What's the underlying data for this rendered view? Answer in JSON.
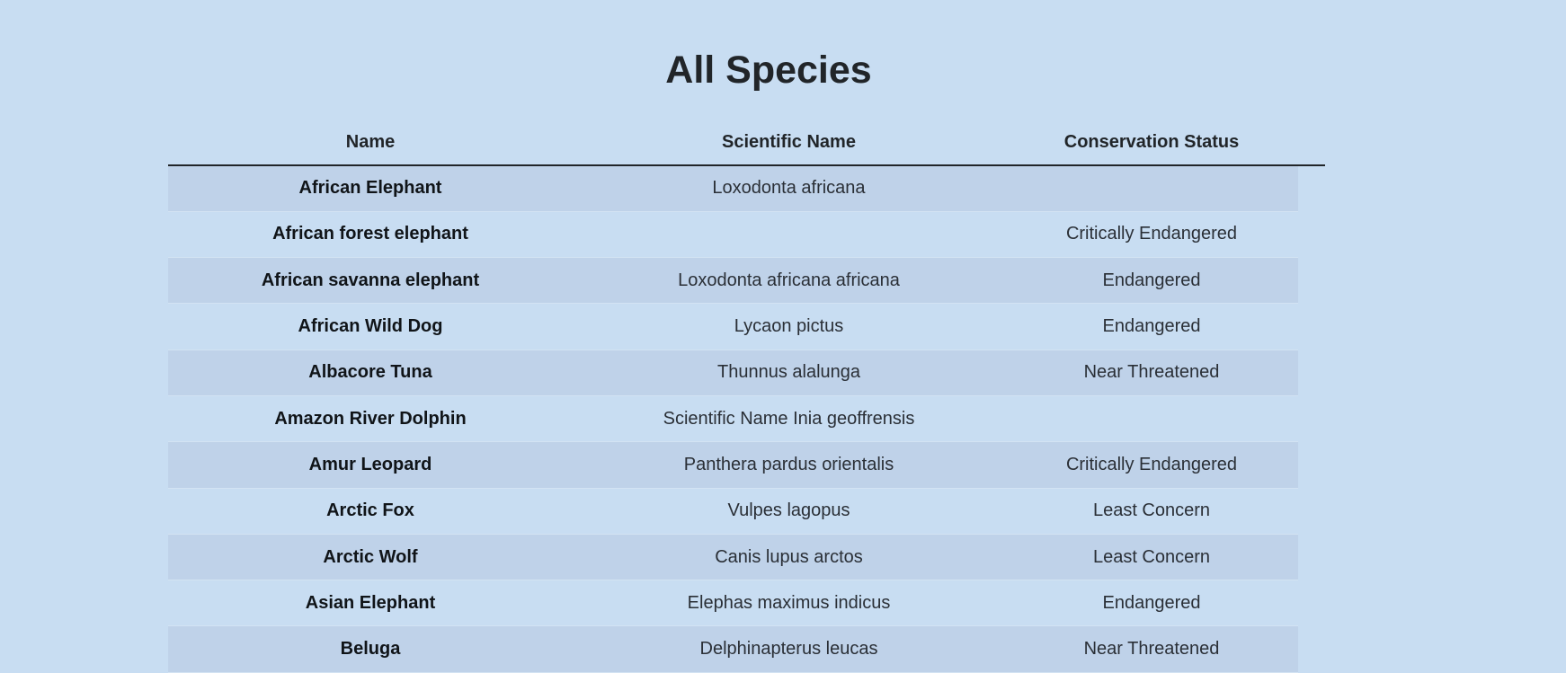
{
  "page": {
    "title": "All Species"
  },
  "table": {
    "headers": [
      "Name",
      "Scientific Name",
      "Conservation Status"
    ],
    "rows": [
      {
        "name": "African Elephant",
        "scientific_name": "Loxodonta africana",
        "status": ""
      },
      {
        "name": "African forest elephant",
        "scientific_name": "",
        "status": "Critically Endangered"
      },
      {
        "name": "African savanna elephant",
        "scientific_name": "Loxodonta africana africana",
        "status": "Endangered"
      },
      {
        "name": "African Wild Dog",
        "scientific_name": "Lycaon pictus",
        "status": "Endangered"
      },
      {
        "name": "Albacore Tuna",
        "scientific_name": "Thunnus alalunga",
        "status": "Near Threatened"
      },
      {
        "name": "Amazon River Dolphin",
        "scientific_name": "Scientific Name Inia geoffrensis",
        "status": ""
      },
      {
        "name": "Amur Leopard",
        "scientific_name": "Panthera pardus orientalis",
        "status": "Critically Endangered"
      },
      {
        "name": "Arctic Fox",
        "scientific_name": "Vulpes lagopus",
        "status": "Least Concern"
      },
      {
        "name": "Arctic Wolf",
        "scientific_name": "Canis lupus arctos",
        "status": "Least Concern"
      },
      {
        "name": "Asian Elephant",
        "scientific_name": "Elephas maximus indicus",
        "status": "Endangered"
      },
      {
        "name": "Beluga",
        "scientific_name": "Delphinapterus leucas",
        "status": "Near Threatened"
      }
    ]
  },
  "colors": {
    "background": "#c8ddf2",
    "striped_row": "#bfd2e9",
    "text": "#212529"
  }
}
